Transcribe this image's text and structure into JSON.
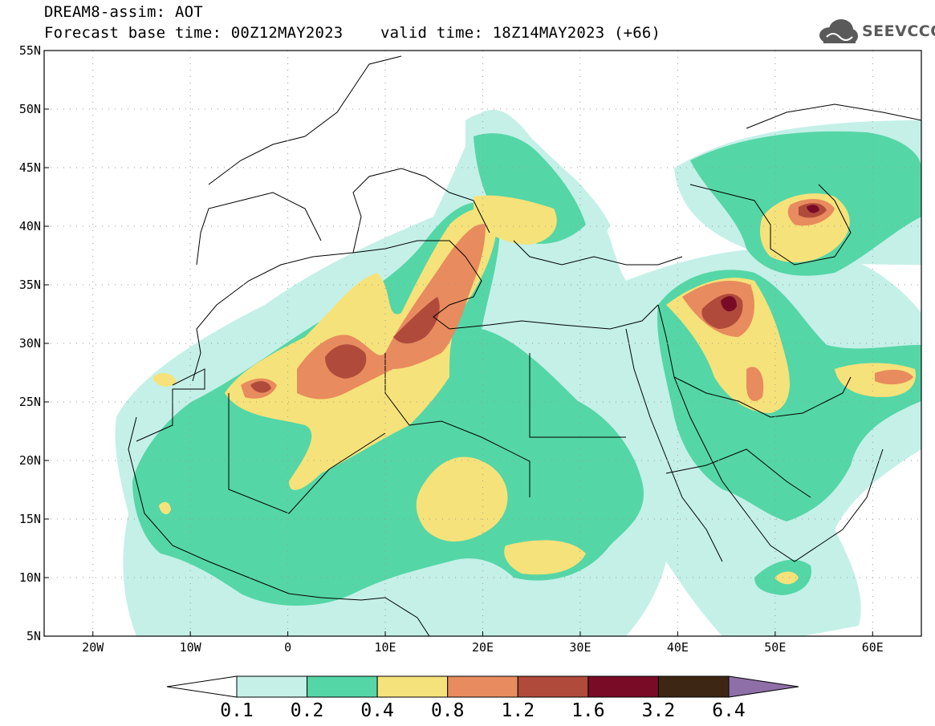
{
  "title": {
    "line1": "DREAM8-assim: AOT",
    "line2": "Forecast base time: 00Z12MAY2023    valid time: 18Z14MAY2023 (+66)"
  },
  "logo": {
    "text": "SEEVCCC",
    "icon": "cloud-icon"
  },
  "map_data": {
    "type": "filled-contour-map",
    "variable": "AOT",
    "lon_range": [
      -25,
      65
    ],
    "lat_range": [
      5,
      55
    ],
    "lon_ticks": [
      {
        "value": -20,
        "label": "20W"
      },
      {
        "value": -10,
        "label": "10W"
      },
      {
        "value": 0,
        "label": "0"
      },
      {
        "value": 10,
        "label": "10E"
      },
      {
        "value": 20,
        "label": "20E"
      },
      {
        "value": 30,
        "label": "30E"
      },
      {
        "value": 40,
        "label": "40E"
      },
      {
        "value": 50,
        "label": "50E"
      },
      {
        "value": 60,
        "label": "60E"
      }
    ],
    "lat_ticks": [
      {
        "value": 5,
        "label": "5N"
      },
      {
        "value": 10,
        "label": "10N"
      },
      {
        "value": 15,
        "label": "15N"
      },
      {
        "value": 20,
        "label": "20N"
      },
      {
        "value": 25,
        "label": "25N"
      },
      {
        "value": 30,
        "label": "30N"
      },
      {
        "value": 35,
        "label": "35N"
      },
      {
        "value": 40,
        "label": "40N"
      },
      {
        "value": 45,
        "label": "45N"
      },
      {
        "value": 50,
        "label": "50N"
      },
      {
        "value": 55,
        "label": "55N"
      }
    ],
    "grid": "dotted"
  },
  "colorbar": {
    "levels": [
      "0.1",
      "0.2",
      "0.4",
      "0.8",
      "1.2",
      "1.6",
      "3.2",
      "6.4"
    ],
    "colors": [
      "#ffffff",
      "#c4f0e8",
      "#55d6a6",
      "#f6e27a",
      "#e88b5e",
      "#b04a3a",
      "#7a0b26",
      "#3d2614",
      "#8f6fa8"
    ]
  },
  "fill_colors": {
    "c1": "#c4f0e8",
    "c2": "#55d6a6",
    "c3": "#f6e27a",
    "c4": "#e88b5e",
    "c5": "#b04a3a",
    "c6": "#7a0b26"
  }
}
